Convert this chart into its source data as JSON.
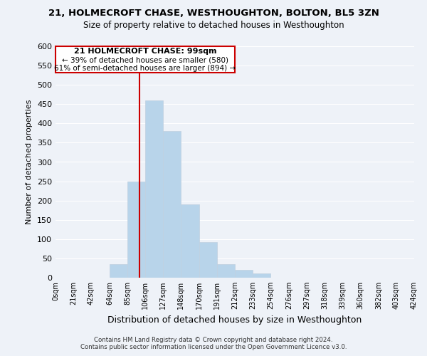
{
  "title": "21, HOLMECROFT CHASE, WESTHOUGHTON, BOLTON, BL5 3ZN",
  "subtitle": "Size of property relative to detached houses in Westhoughton",
  "xlabel": "Distribution of detached houses by size in Westhoughton",
  "ylabel": "Number of detached properties",
  "bar_color": "#b8d4ea",
  "bin_edges": [
    0,
    21,
    42,
    64,
    85,
    106,
    127,
    148,
    170,
    191,
    212,
    233,
    254,
    276,
    297,
    318,
    339,
    360,
    382,
    403,
    424
  ],
  "bar_heights": [
    0,
    0,
    0,
    35,
    250,
    460,
    380,
    190,
    93,
    35,
    20,
    12,
    0,
    0,
    0,
    0,
    0,
    0,
    0,
    0
  ],
  "tick_labels": [
    "0sqm",
    "21sqm",
    "42sqm",
    "64sqm",
    "85sqm",
    "106sqm",
    "127sqm",
    "148sqm",
    "170sqm",
    "191sqm",
    "212sqm",
    "233sqm",
    "254sqm",
    "276sqm",
    "297sqm",
    "318sqm",
    "339sqm",
    "360sqm",
    "382sqm",
    "403sqm",
    "424sqm"
  ],
  "ylim": [
    0,
    600
  ],
  "yticks": [
    0,
    50,
    100,
    150,
    200,
    250,
    300,
    350,
    400,
    450,
    500,
    550,
    600
  ],
  "vline_x": 99,
  "vline_color": "#cc0000",
  "annotation_title": "21 HOLMECROFT CHASE: 99sqm",
  "annotation_line1": "← 39% of detached houses are smaller (580)",
  "annotation_line2": "61% of semi-detached houses are larger (894) →",
  "footer1": "Contains HM Land Registry data © Crown copyright and database right 2024.",
  "footer2": "Contains public sector information licensed under the Open Government Licence v3.0.",
  "background_color": "#eef2f8",
  "grid_color": "#d8dce8"
}
